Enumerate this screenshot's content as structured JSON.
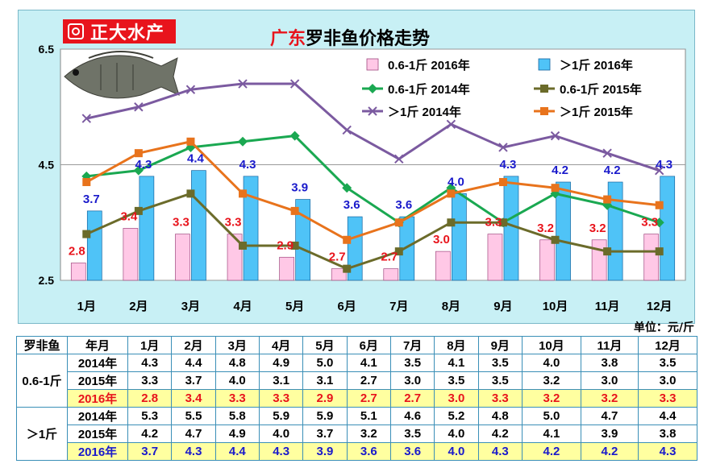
{
  "brand": "正大水产",
  "title_red": "广东",
  "title_black": "罗非鱼价格走势",
  "unit": "单位：元/斤",
  "colors": {
    "pink_bar": "#ffc8e6",
    "blue_bar": "#4fc3f7",
    "green_line": "#1aa851",
    "olive_line": "#6b6b2a",
    "purple_line": "#7b5aa0",
    "orange_line": "#e8731c",
    "red_label": "#e8141c",
    "blue_label": "#1a1acb"
  },
  "chart_data": {
    "type": "bar",
    "categories": [
      "1月",
      "2月",
      "3月",
      "4月",
      "5月",
      "6月",
      "7月",
      "8月",
      "9月",
      "10月",
      "11月",
      "12月"
    ],
    "ylim": [
      2.5,
      6.5
    ],
    "yticks": [
      "2.5",
      "4.5",
      "6.5"
    ],
    "series": [
      {
        "name": "0.6-1斤 2016年",
        "kind": "bar",
        "values": [
          2.8,
          3.4,
          3.3,
          3.3,
          2.9,
          2.7,
          2.7,
          3.0,
          3.3,
          3.2,
          3.2,
          3.3
        ]
      },
      {
        "name": "＞1斤 2016年",
        "kind": "bar",
        "values": [
          3.7,
          4.3,
          4.4,
          4.3,
          3.9,
          3.6,
          3.6,
          4.0,
          4.3,
          4.2,
          4.2,
          4.3
        ]
      },
      {
        "name": "0.6-1斤 2014年",
        "kind": "line",
        "values": [
          4.3,
          4.4,
          4.8,
          4.9,
          5.0,
          4.1,
          3.5,
          4.1,
          3.5,
          4.0,
          3.8,
          3.5
        ]
      },
      {
        "name": "0.6-1斤 2015年",
        "kind": "line",
        "values": [
          3.3,
          3.7,
          4.0,
          3.1,
          3.1,
          2.7,
          3.0,
          3.5,
          3.5,
          3.2,
          3.0,
          3.0
        ]
      },
      {
        "name": "＞1斤 2014年",
        "kind": "line",
        "values": [
          5.3,
          5.5,
          5.8,
          5.9,
          5.9,
          5.1,
          4.6,
          5.2,
          4.8,
          5.0,
          4.7,
          4.4
        ]
      },
      {
        "name": "＞1斤 2015年",
        "kind": "line",
        "values": [
          4.2,
          4.7,
          4.9,
          4.0,
          3.7,
          3.2,
          3.5,
          4.0,
          4.2,
          4.1,
          3.9,
          3.8
        ]
      }
    ],
    "bar_labels_pink": [
      "2.8",
      "3.4",
      "3.3",
      "3.3",
      "2.9",
      "2.7",
      "2.7",
      "3.0",
      "3.3",
      "3.2",
      "3.2",
      "3.3"
    ],
    "bar_labels_blue": [
      "3.7",
      "4.3",
      "4.4",
      "4.3",
      "3.9",
      "3.6",
      "3.6",
      "4.0",
      "4.3",
      "4.2",
      "4.2",
      "4.3"
    ]
  },
  "table": {
    "corner": "罗非鱼",
    "header_year": "年月",
    "months": [
      "1月",
      "2月",
      "3月",
      "4月",
      "5月",
      "6月",
      "7月",
      "8月",
      "9月",
      "10月",
      "11月",
      "12月"
    ],
    "groups": [
      {
        "name": "0.6-1斤",
        "rows": [
          {
            "year": "2014年",
            "vals": [
              "4.3",
              "4.4",
              "4.8",
              "4.9",
              "5.0",
              "4.1",
              "3.5",
              "4.1",
              "3.5",
              "4.0",
              "3.8",
              "3.5"
            ]
          },
          {
            "year": "2015年",
            "vals": [
              "3.3",
              "3.7",
              "4.0",
              "3.1",
              "3.1",
              "2.7",
              "3.0",
              "3.5",
              "3.5",
              "3.2",
              "3.0",
              "3.0"
            ]
          },
          {
            "year": "2016年",
            "vals": [
              "2.8",
              "3.4",
              "3.3",
              "3.3",
              "2.9",
              "2.7",
              "2.7",
              "3.0",
              "3.3",
              "3.2",
              "3.2",
              "3.3"
            ]
          }
        ]
      },
      {
        "name": "＞1斤",
        "rows": [
          {
            "year": "2014年",
            "vals": [
              "5.3",
              "5.5",
              "5.8",
              "5.9",
              "5.9",
              "5.1",
              "4.6",
              "5.2",
              "4.8",
              "5.0",
              "4.7",
              "4.4"
            ]
          },
          {
            "year": "2015年",
            "vals": [
              "4.2",
              "4.7",
              "4.9",
              "4.0",
              "3.7",
              "3.2",
              "3.5",
              "4.0",
              "4.2",
              "4.1",
              "3.9",
              "3.8"
            ]
          },
          {
            "year": "2016年",
            "vals": [
              "3.7",
              "4.3",
              "4.4",
              "4.3",
              "3.9",
              "3.6",
              "3.6",
              "4.0",
              "4.3",
              "4.2",
              "4.2",
              "4.3"
            ]
          }
        ]
      }
    ]
  }
}
